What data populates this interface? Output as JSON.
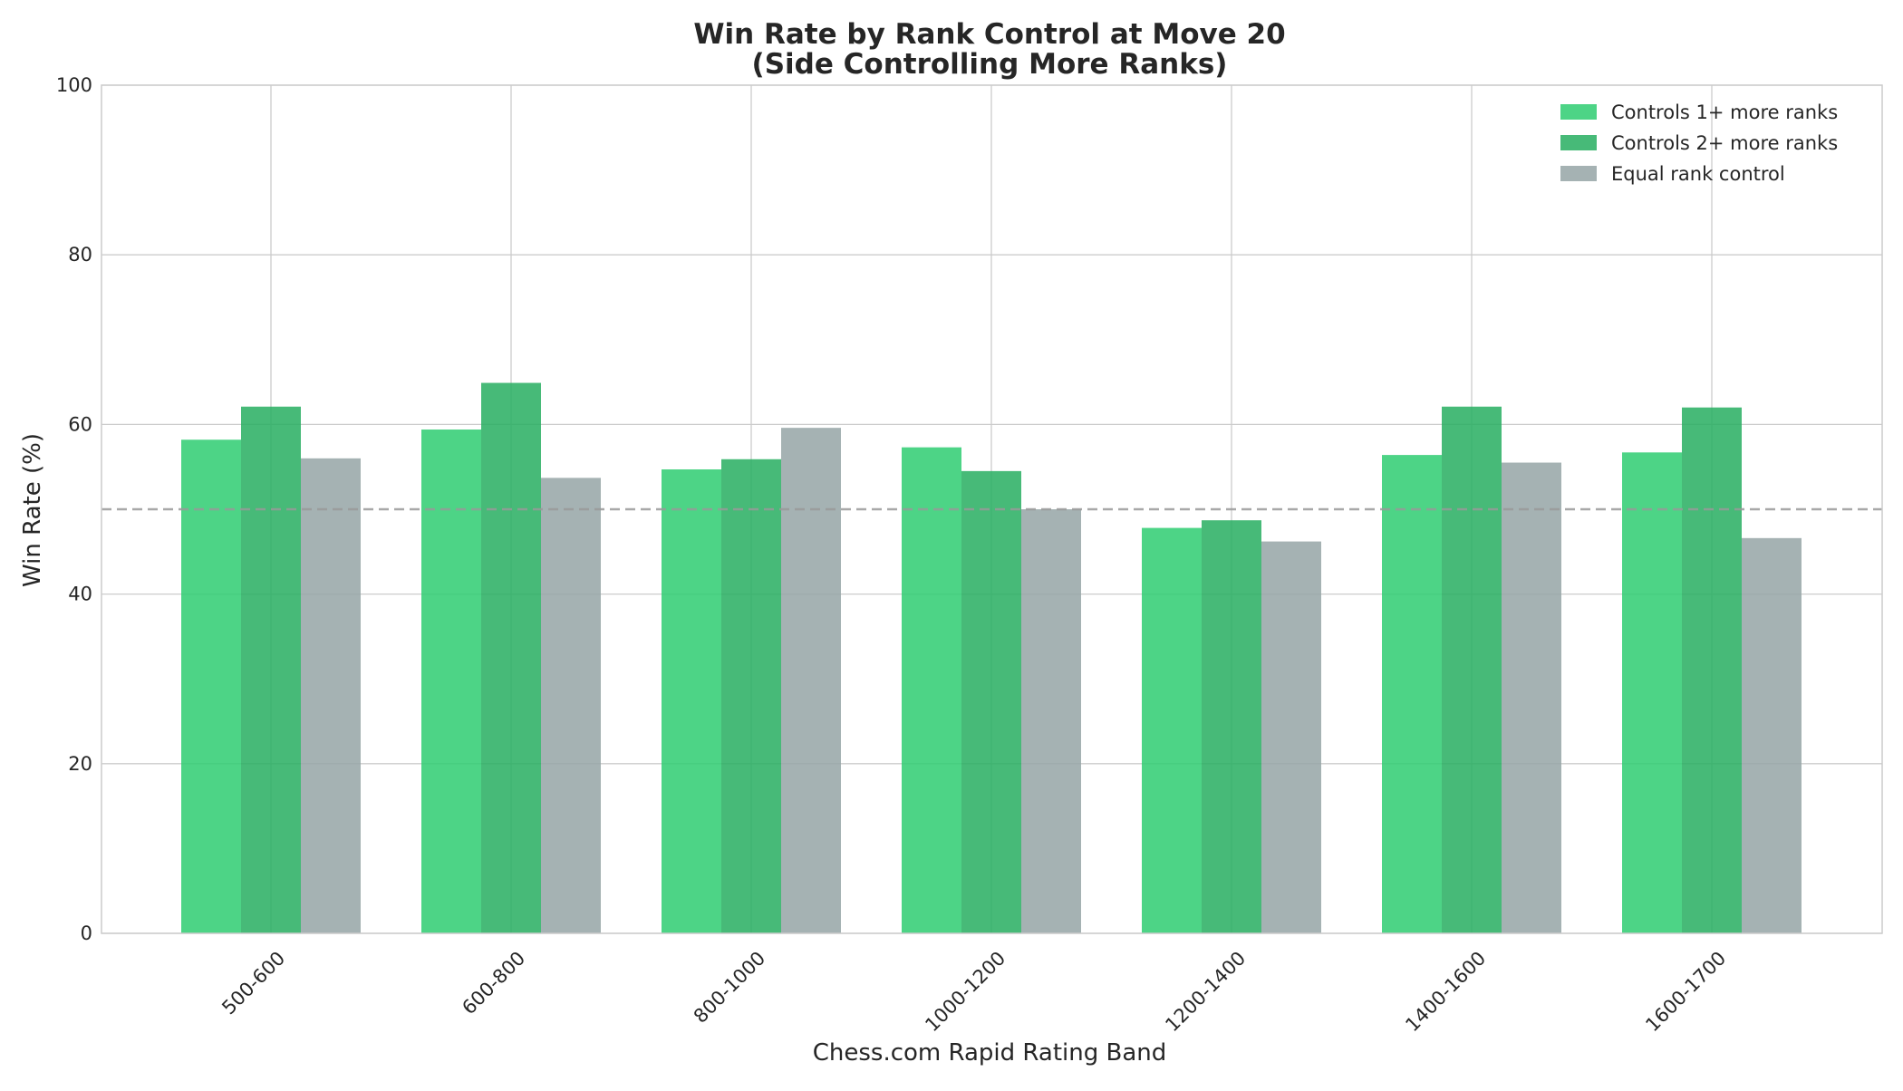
{
  "chart_data": {
    "type": "bar",
    "title": "Win Rate by Rank Control at Move 20",
    "subtitle": "(Side Controlling More Ranks)",
    "xlabel": "Chess.com Rapid Rating Band",
    "ylabel": "Win Rate (%)",
    "categories": [
      "500-600",
      "600-800",
      "800-1000",
      "1000-1200",
      "1200-1400",
      "1400-1600",
      "1600-1700"
    ],
    "series": [
      {
        "name": "Controls 1+ more ranks",
        "color": "#2ecc71",
        "opacity": 0.85,
        "values": [
          58.2,
          59.4,
          54.7,
          57.3,
          47.8,
          56.4,
          56.7
        ]
      },
      {
        "name": "Controls 2+ more ranks",
        "color": "#27ae60",
        "opacity": 0.85,
        "values": [
          62.1,
          64.9,
          55.9,
          54.5,
          48.7,
          62.1,
          62.0
        ]
      },
      {
        "name": "Equal rank control",
        "color": "#95a5a6",
        "opacity": 0.85,
        "values": [
          56.0,
          53.7,
          59.6,
          50.0,
          46.2,
          55.5,
          46.6
        ]
      }
    ],
    "ylim": [
      0,
      100
    ],
    "yticks": [
      0,
      20,
      40,
      60,
      80,
      100
    ],
    "reference_line": {
      "value": 50,
      "style": "dashed",
      "color": "#999999"
    },
    "grid": true,
    "legend_position": "top-right"
  }
}
